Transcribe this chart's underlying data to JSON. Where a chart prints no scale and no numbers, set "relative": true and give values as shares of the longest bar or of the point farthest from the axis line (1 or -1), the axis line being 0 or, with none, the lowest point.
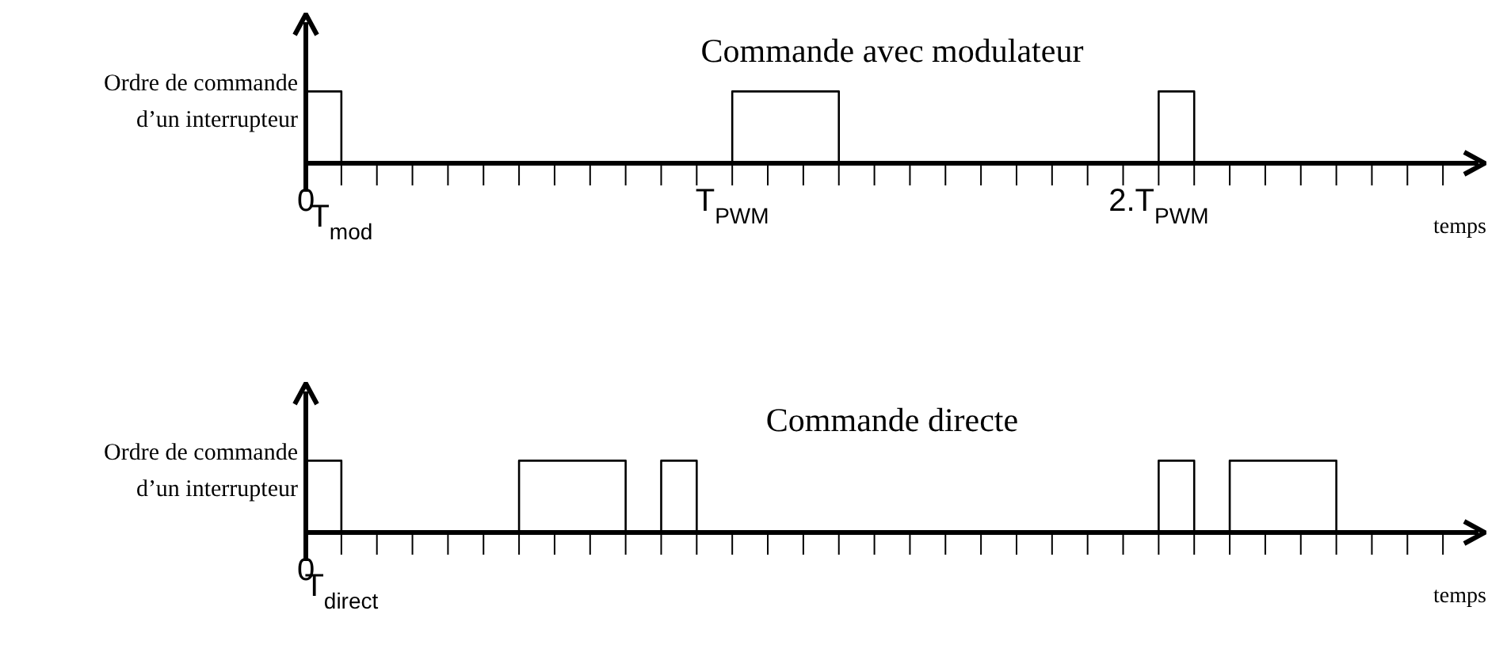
{
  "chart_data": [
    {
      "type": "step",
      "title": "Commande avec modulateur",
      "xlabel": "temps",
      "ylabel": "Ordre de commande d’un interrupteur",
      "relative": true,
      "tick_labels": "x",
      "categories": [
        "0",
        "T$_{mod}$",
        null,
        null,
        null,
        null,
        null,
        null,
        null,
        null,
        null,
        null,
        "T$_{PWM}$",
        null,
        null,
        null,
        null,
        null,
        null,
        null,
        null,
        null,
        null,
        null,
        "2.T$_{PWM}$",
        null,
        null,
        null,
        null,
        null,
        null,
        null,
        null
      ],
      "series": [
        {
          "color": "#000000",
          "values": [
            1,
            0,
            0,
            0,
            0,
            0,
            0,
            0,
            0,
            0,
            0,
            0,
            1,
            1,
            1,
            0,
            0,
            0,
            0,
            0,
            0,
            0,
            0,
            0,
            1,
            0,
            0,
            0,
            0,
            0,
            0,
            0,
            0
          ]
        }
      ]
    },
    {
      "type": "step",
      "title": "Commande directe",
      "xlabel": "temps",
      "ylabel": "Ordre de commande d’un interrupteur",
      "relative": true,
      "tick_labels": "x",
      "categories": [
        "0",
        "T$_{direct}$",
        null,
        null,
        null,
        null,
        null,
        null,
        null,
        null,
        null,
        null,
        null,
        null,
        null,
        null,
        null,
        null,
        null,
        null,
        null,
        null,
        null,
        null,
        null,
        null,
        null,
        null,
        null,
        null,
        null,
        null,
        null
      ],
      "series": [
        {
          "color": "#000000",
          "values": [
            1,
            0,
            0,
            0,
            0,
            0,
            1,
            1,
            1,
            0,
            1,
            0,
            0,
            0,
            0,
            0,
            0,
            0,
            0,
            0,
            0,
            0,
            0,
            0,
            1,
            0,
            1,
            1,
            1,
            0,
            0,
            0,
            0
          ]
        }
      ]
    }
  ]
}
